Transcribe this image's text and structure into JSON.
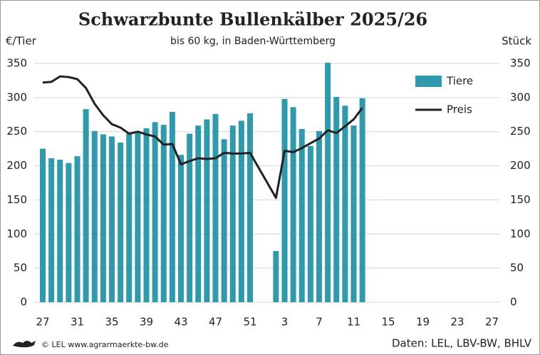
{
  "chart_data": {
    "type": "bar",
    "title": "Schwarzbunte Bullenkälber 2025/26",
    "subtitle": "bis 60 kg, in Baden-Württemberg",
    "y_label": "€/Tier",
    "y2_label": "Stück",
    "categories": [
      "27",
      null,
      null,
      null,
      "31",
      null,
      null,
      null,
      "35",
      null,
      null,
      null,
      "39",
      null,
      null,
      null,
      "43",
      null,
      null,
      null,
      "47",
      null,
      null,
      null,
      "51",
      null,
      null,
      null,
      "3",
      null,
      null,
      null,
      "7",
      null,
      null,
      null,
      "11",
      null,
      null,
      null,
      "15",
      null,
      null,
      null,
      "19",
      null,
      null,
      null,
      "23",
      null,
      null,
      null,
      "27"
    ],
    "series": [
      {
        "name": "Tiere",
        "type": "bar",
        "axis": "y2",
        "color": "#2e9aab",
        "values": [
          225,
          211,
          209,
          204,
          214,
          283,
          251,
          246,
          243,
          234,
          248,
          250,
          255,
          264,
          260,
          279,
          216,
          247,
          259,
          268,
          276,
          239,
          259,
          266,
          277,
          null,
          null,
          75,
          298,
          286,
          254,
          229,
          251,
          351,
          301,
          288,
          259,
          299,
          null,
          null,
          null,
          null,
          null,
          null,
          null,
          null,
          null,
          null,
          null,
          null,
          null,
          null,
          null
        ]
      },
      {
        "name": "Preis",
        "type": "line",
        "color": "#222222",
        "values": [
          322,
          323,
          331,
          330,
          327,
          314,
          291,
          274,
          261,
          256,
          247,
          250,
          246,
          243,
          231,
          232,
          202,
          207,
          211,
          210,
          211,
          219,
          218,
          218,
          219,
          197,
          175,
          153,
          222,
          220,
          226,
          233,
          240,
          252,
          248,
          258,
          268,
          285,
          null,
          null,
          null,
          null,
          null,
          null,
          null,
          null,
          null,
          null,
          null,
          null,
          null,
          null,
          null
        ]
      }
    ],
    "ylim": [
      0,
      350
    ],
    "yticks": [
      0,
      50,
      100,
      150,
      200,
      250,
      300,
      350
    ],
    "y2lim": [
      0,
      350
    ],
    "y2ticks": [
      0,
      50,
      100,
      150,
      200,
      250,
      300,
      350
    ],
    "grid": true,
    "legend": "top-right",
    "footer_left": "© LEL www.agrarmaerkte-bw.de",
    "footer_right": "Daten: LEL, LBV-BW, BHLV"
  }
}
